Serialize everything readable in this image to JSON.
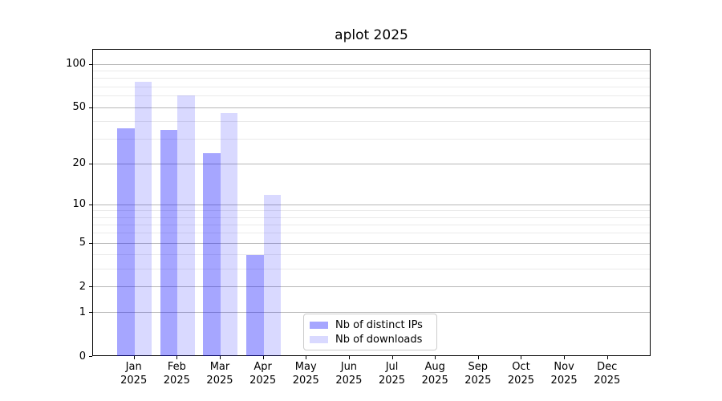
{
  "chart_data": {
    "type": "bar",
    "title": "aplot 2025",
    "x_axis": {
      "months": [
        "Jan",
        "Feb",
        "Mar",
        "Apr",
        "May",
        "Jun",
        "Jul",
        "Aug",
        "Sep",
        "Oct",
        "Nov",
        "Dec"
      ],
      "year_line": "2025"
    },
    "y_axis": {
      "scale": "log1p",
      "tick_labels": [
        "100",
        "50",
        "20",
        "10",
        "5",
        "2",
        "1",
        "0"
      ],
      "tick_values": [
        100,
        50,
        20,
        10,
        5,
        2,
        1,
        0
      ],
      "major_gridline_values": [
        1,
        2,
        5,
        10,
        20,
        50,
        100
      ],
      "minor_gridline_values": [
        3,
        4,
        6,
        7,
        8,
        9,
        30,
        40,
        60,
        70,
        80,
        90
      ]
    },
    "series": [
      {
        "name": "Nb of distinct IPs",
        "color_hex": "#0000ff",
        "alpha": 0.35,
        "color_on_white": "#a6a6ff",
        "values": [
          36,
          35,
          24,
          4,
          null,
          null,
          null,
          null,
          null,
          null,
          null,
          null
        ]
      },
      {
        "name": "Nb of downloads",
        "color_hex": "#0000ff",
        "alpha": 0.15,
        "color_on_white": "#d9d9ff",
        "values": [
          76,
          61,
          46,
          12,
          null,
          null,
          null,
          null,
          null,
          null,
          null,
          null
        ]
      }
    ],
    "legend": {
      "entries": [
        "Nb of distinct IPs",
        "Nb of downloads"
      ],
      "position": "lower-center-inside"
    },
    "grid": true
  },
  "colors": {
    "background": "#ffffff",
    "spine": "#000000",
    "grid_major": "#b8b8b8",
    "grid_minor": "#eaeaea",
    "legend_border": "#cccccc",
    "text": "#000000"
  }
}
